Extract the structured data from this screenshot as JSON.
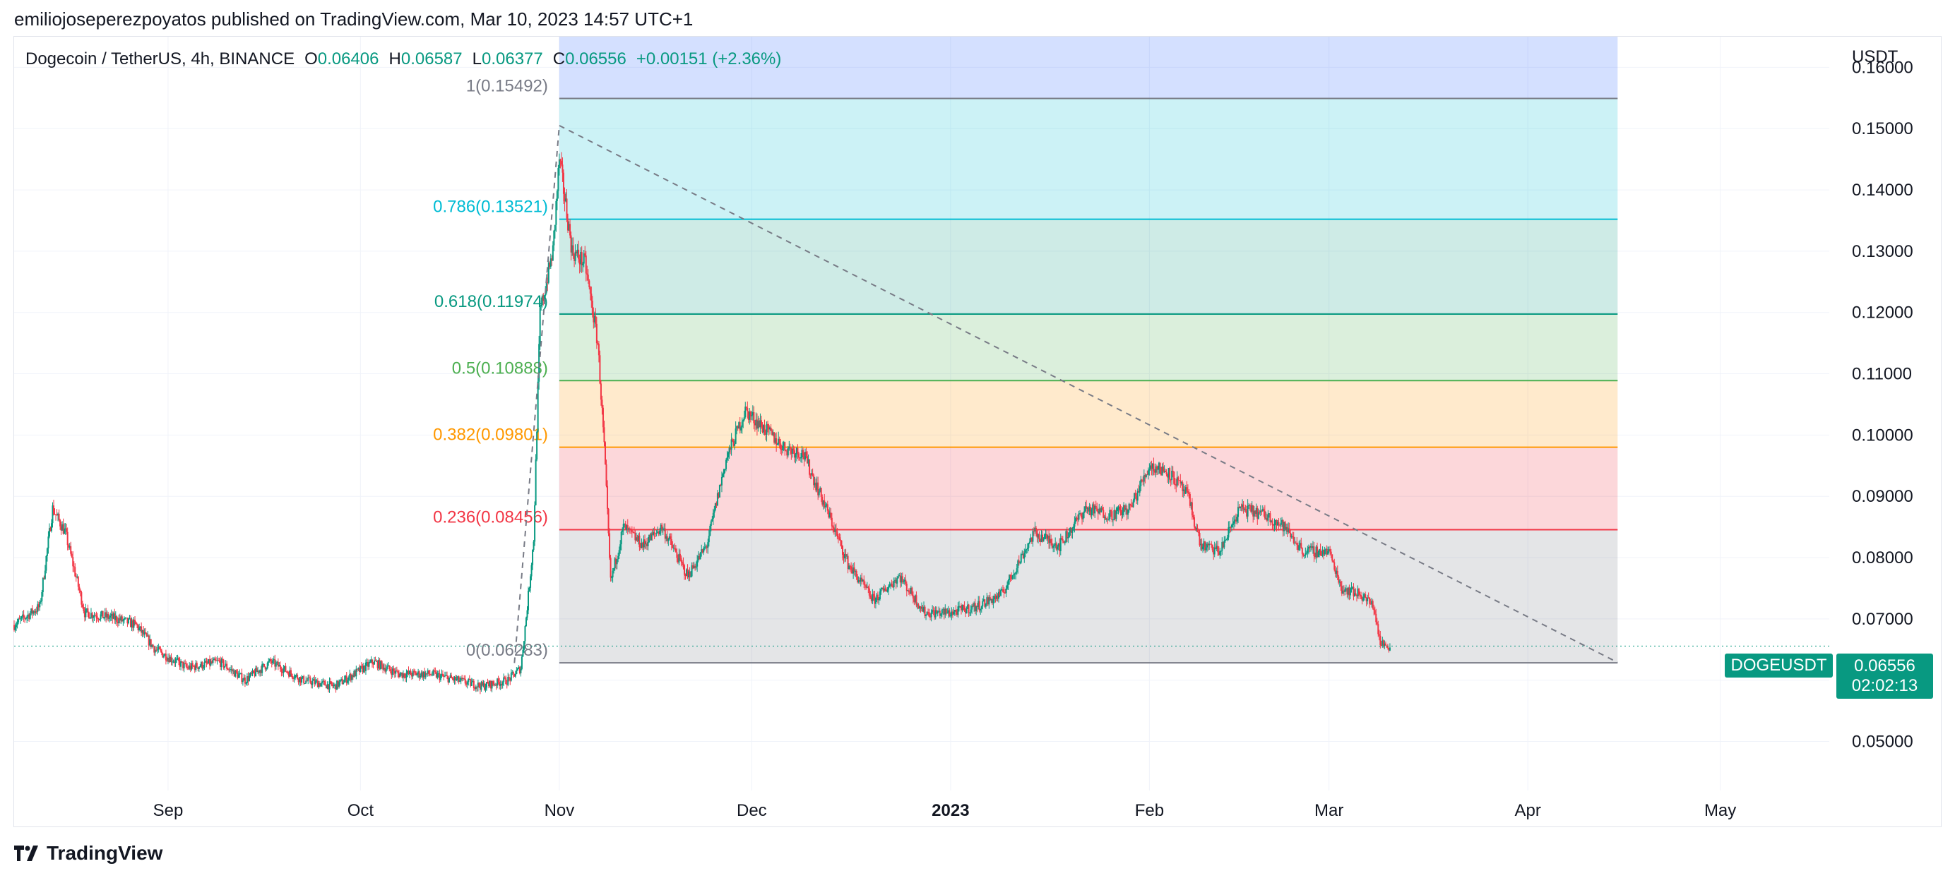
{
  "header": {
    "published_line": "emiliojoseperezpoyatos published on TradingView.com, Mar 10, 2023 14:57 UTC+1"
  },
  "legend": {
    "symbol": "Dogecoin / TetherUS, 4h, BINANCE",
    "open_label": "O",
    "open": "0.06406",
    "high_label": "H",
    "high": "0.06587",
    "low_label": "L",
    "low": "0.06377",
    "close_label": "C",
    "close": "0.06556",
    "change": "+0.00151 (+2.36%)"
  },
  "price_tag": {
    "symbol": "DOGEUSDT",
    "price": "0.06556",
    "countdown": "02:02:13"
  },
  "footer": {
    "brand": "TradingView"
  },
  "colors": {
    "up": "#089981",
    "down": "#f23645",
    "grid": "#f0f3fa",
    "text": "#131722",
    "fib_1": "#787b86",
    "fib_0786": "#00bcd4",
    "fib_0618": "#089981",
    "fib_05": "#4caf50",
    "fib_0382": "#ff9800",
    "fib_0236": "#f23645",
    "fib_0": "#787b86",
    "ext_zone": "#2962ff"
  },
  "chart_data": {
    "type": "candlestick",
    "y_axis_label": "USDT",
    "y_ticks": [
      "0.16000",
      "0.15000",
      "0.14000",
      "0.13000",
      "0.12000",
      "0.11000",
      "0.10000",
      "0.09000",
      "0.08000",
      "0.07000",
      "0.06000",
      "0.05000"
    ],
    "x_ticks": [
      "Sep",
      "Oct",
      "Nov",
      "Dec",
      "2023",
      "Feb",
      "Mar",
      "Apr",
      "May"
    ],
    "ylim": [
      0.042,
      0.165
    ],
    "xlim": [
      "2022-08-08",
      "2023-05-18"
    ],
    "fib_levels": [
      {
        "ratio": 1,
        "price": 0.15492,
        "label": "1(0.15492)"
      },
      {
        "ratio": 0.786,
        "price": 0.13521,
        "label": "0.786(0.13521)"
      },
      {
        "ratio": 0.618,
        "price": 0.11974,
        "label": "0.618(0.11974)"
      },
      {
        "ratio": 0.5,
        "price": 0.10888,
        "label": "0.5(0.10888)"
      },
      {
        "ratio": 0.382,
        "price": 0.09801,
        "label": "0.382(0.09801)"
      },
      {
        "ratio": 0.236,
        "price": 0.08456,
        "label": "0.236(0.08456)"
      },
      {
        "ratio": 0,
        "price": 0.06283,
        "label": "0(0.06283)"
      }
    ],
    "fib_time_range": [
      "2022-11-01",
      "2023-04-15"
    ],
    "trendline": {
      "from": [
        "2022-11-01",
        0.1505
      ],
      "to": [
        "2023-04-15",
        0.0629
      ]
    },
    "retracement_line": {
      "from": [
        "2022-10-25",
        0.0628
      ],
      "to": [
        "2022-11-01",
        0.1505
      ]
    },
    "price_path": [
      [
        "2022-08-08",
        0.069
      ],
      [
        "2022-08-12",
        0.072
      ],
      [
        "2022-08-14",
        0.088
      ],
      [
        "2022-08-16",
        0.084
      ],
      [
        "2022-08-19",
        0.071
      ],
      [
        "2022-08-24",
        0.07
      ],
      [
        "2022-08-27",
        0.069
      ],
      [
        "2022-08-30",
        0.065
      ],
      [
        "2022-09-04",
        0.062
      ],
      [
        "2022-09-09",
        0.063
      ],
      [
        "2022-09-13",
        0.06
      ],
      [
        "2022-09-17",
        0.063
      ],
      [
        "2022-09-22",
        0.06
      ],
      [
        "2022-09-27",
        0.059
      ],
      [
        "2022-09-30",
        0.061
      ],
      [
        "2022-10-03",
        0.063
      ],
      [
        "2022-10-07",
        0.061
      ],
      [
        "2022-10-12",
        0.061
      ],
      [
        "2022-10-16",
        0.06
      ],
      [
        "2022-10-20",
        0.059
      ],
      [
        "2022-10-24",
        0.06
      ],
      [
        "2022-10-26",
        0.062
      ],
      [
        "2022-10-27",
        0.072
      ],
      [
        "2022-10-28",
        0.083
      ],
      [
        "2022-10-29",
        0.12
      ],
      [
        "2022-10-31",
        0.13
      ],
      [
        "2022-11-01",
        0.145
      ],
      [
        "2022-11-03",
        0.13
      ],
      [
        "2022-11-05",
        0.128
      ],
      [
        "2022-11-07",
        0.115
      ],
      [
        "2022-11-08",
        0.098
      ],
      [
        "2022-11-09",
        0.076
      ],
      [
        "2022-11-11",
        0.085
      ],
      [
        "2022-11-14",
        0.082
      ],
      [
        "2022-11-17",
        0.085
      ],
      [
        "2022-11-21",
        0.077
      ],
      [
        "2022-11-24",
        0.082
      ],
      [
        "2022-11-27",
        0.096
      ],
      [
        "2022-11-30",
        0.104
      ],
      [
        "2022-12-03",
        0.101
      ],
      [
        "2022-12-06",
        0.098
      ],
      [
        "2022-12-09",
        0.097
      ],
      [
        "2022-12-13",
        0.087
      ],
      [
        "2022-12-16",
        0.079
      ],
      [
        "2022-12-20",
        0.073
      ],
      [
        "2022-12-24",
        0.077
      ],
      [
        "2022-12-28",
        0.071
      ],
      [
        "2023-01-01",
        0.071
      ],
      [
        "2023-01-05",
        0.072
      ],
      [
        "2023-01-09",
        0.074
      ],
      [
        "2023-01-14",
        0.084
      ],
      [
        "2023-01-18",
        0.082
      ],
      [
        "2023-01-22",
        0.088
      ],
      [
        "2023-01-26",
        0.087
      ],
      [
        "2023-01-29",
        0.088
      ],
      [
        "2023-02-01",
        0.095
      ],
      [
        "2023-02-04",
        0.094
      ],
      [
        "2023-02-07",
        0.09
      ],
      [
        "2023-02-09",
        0.082
      ],
      [
        "2023-02-12",
        0.081
      ],
      [
        "2023-02-15",
        0.088
      ],
      [
        "2023-02-19",
        0.087
      ],
      [
        "2023-02-22",
        0.085
      ],
      [
        "2023-02-25",
        0.081
      ],
      [
        "2023-03-01",
        0.081
      ],
      [
        "2023-03-03",
        0.075
      ],
      [
        "2023-03-06",
        0.074
      ],
      [
        "2023-03-08",
        0.072
      ],
      [
        "2023-03-09",
        0.066
      ],
      [
        "2023-03-10",
        0.0656
      ]
    ],
    "last_close": 0.06556
  }
}
